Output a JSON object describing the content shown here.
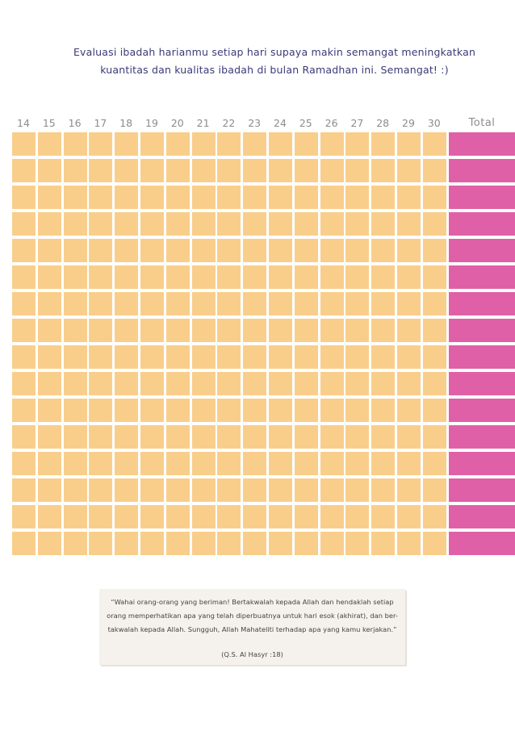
{
  "intro": {
    "line1": "Evaluasi ibadah harianmu setiap hari supaya makin semangat meningkatkan",
    "line2": "kuantitas dan kualitas ibadah di bulan Ramadhan ini. Semangat! :)"
  },
  "tracker": {
    "days": [
      "14",
      "15",
      "16",
      "17",
      "18",
      "19",
      "20",
      "21",
      "22",
      "23",
      "24",
      "25",
      "26",
      "27",
      "28",
      "29",
      "30"
    ],
    "total_label": "Total",
    "row_count": 16,
    "colors": {
      "day_cell": "#f9ce8b",
      "total_cell": "#e060a8",
      "label": "#8c8c8c"
    }
  },
  "quote": {
    "line1": "“Wahai orang-orang yang beriman! Bertakwalah kepada Allah dan hendaklah setiap",
    "line2": "orang memperhatikan apa yang telah diperbuatnya untuk hari esok (akhirat), dan ber-",
    "line3": "takwalah kepada Allah. Sungguh, Allah Mahateliti terhadap apa yang kamu kerjakan.”",
    "reference": "(Q.S. Al Hasyr :18)"
  }
}
